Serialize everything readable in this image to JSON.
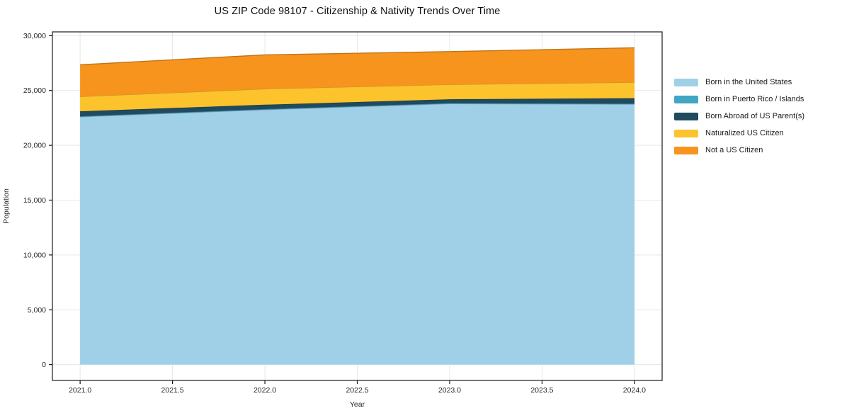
{
  "title": "US ZIP Code 98107 - Citizenship & Nativity Trends Over Time",
  "chart_data": {
    "type": "area",
    "stacked": true,
    "title": "US ZIP Code 98107 - Citizenship & Nativity Trends Over Time",
    "xlabel": "Year",
    "ylabel": "Population",
    "x": [
      2021,
      2022,
      2023,
      2024
    ],
    "series": [
      {
        "name": "Born in the United States",
        "color": "#9fd0e8",
        "values": [
          22600,
          23250,
          23800,
          23750
        ]
      },
      {
        "name": "Born in Puerto Rico / Islands",
        "color": "#41a6c4",
        "values": [
          50,
          50,
          50,
          50
        ]
      },
      {
        "name": "Born Abroad of US Parent(s)",
        "color": "#1f4a5f",
        "values": [
          450,
          400,
          350,
          500
        ]
      },
      {
        "name": "Naturalized US Citizen",
        "color": "#fdc32d",
        "values": [
          1350,
          1450,
          1350,
          1450
        ]
      },
      {
        "name": "Not a US Citizen",
        "color": "#f7941e",
        "values": [
          2900,
          3100,
          3000,
          3150
        ]
      }
    ],
    "stack_totals": [
      27350,
      28250,
      28550,
      28900
    ],
    "xticks": {
      "values": [
        2021.0,
        2021.5,
        2022.0,
        2022.5,
        2023.0,
        2023.5,
        2024.0
      ],
      "labels": [
        "2021.0",
        "2021.5",
        "2022.0",
        "2022.5",
        "2023.0",
        "2023.5",
        "2024.0"
      ]
    },
    "yticks": {
      "values": [
        0,
        5000,
        10000,
        15000,
        20000,
        25000,
        30000
      ],
      "labels": [
        "0",
        "5,000",
        "10,000",
        "15,000",
        "20,000",
        "25,000",
        "30,000"
      ]
    },
    "xlim": [
      2020.85,
      2024.15
    ],
    "ylim": [
      -1445,
      30345
    ],
    "grid": true,
    "legend_position": "right-outside"
  },
  "colors": {
    "grid": "#e7e7e7",
    "frame": "#1a1a1a",
    "tick_text": "#262626",
    "background": "#ffffff"
  }
}
